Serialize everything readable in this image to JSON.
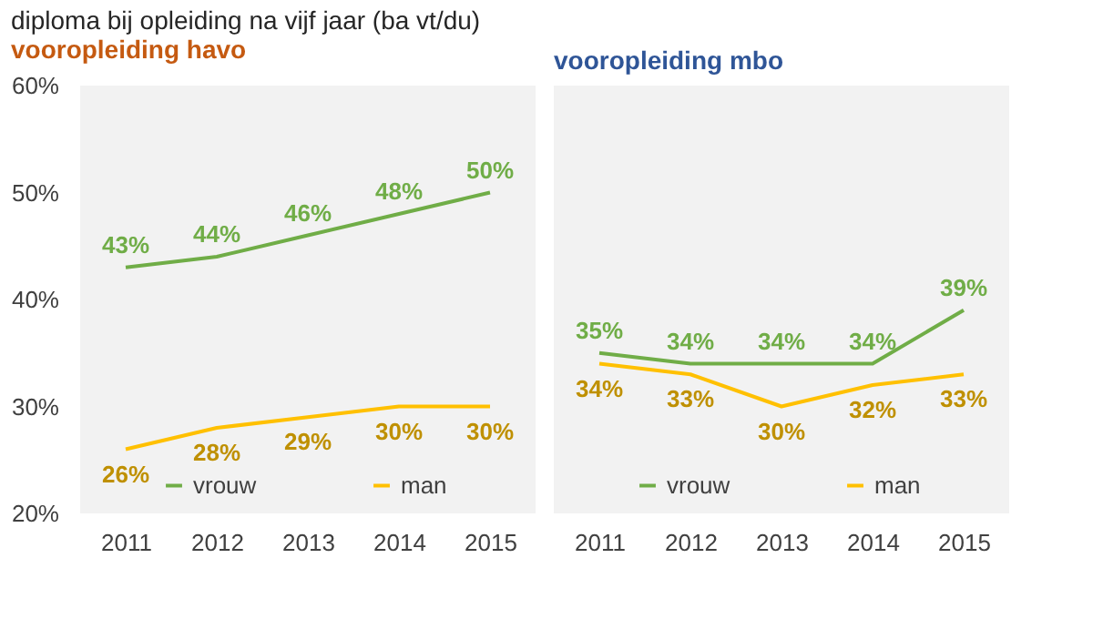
{
  "chart_data": [
    {
      "type": "line",
      "title": "vooropleiding havo",
      "annotations": [
        "diploma bij opleiding na vijf jaar (ba vt/du)"
      ],
      "categories": [
        "2011",
        "2012",
        "2013",
        "2014",
        "2015"
      ],
      "ylim": [
        20,
        60
      ],
      "yticks": [
        {
          "value": 20,
          "label": "20%"
        },
        {
          "value": 30,
          "label": "30%"
        },
        {
          "value": 40,
          "label": "40%"
        },
        {
          "value": 50,
          "label": "50%"
        },
        {
          "value": 60,
          "label": "60%"
        }
      ],
      "grid": false,
      "legend": "bottom",
      "marker": "none",
      "line_style": "solid",
      "series": [
        {
          "name": "vrouw",
          "color": "#70ad47",
          "values": [
            43,
            44,
            46,
            48,
            50
          ],
          "value_labels": [
            "43%",
            "44%",
            "46%",
            "48%",
            "50%"
          ]
        },
        {
          "name": "man",
          "color": "#ffc000",
          "values": [
            26,
            28,
            29,
            30,
            30
          ],
          "value_labels": [
            "26%",
            "28%",
            "29%",
            "30%",
            "30%"
          ]
        }
      ]
    },
    {
      "type": "line",
      "title": "vooropleiding mbo",
      "categories": [
        "2011",
        "2012",
        "2013",
        "2014",
        "2015"
      ],
      "ylim": [
        20,
        60
      ],
      "tick_labels": "x",
      "grid": false,
      "legend": "bottom",
      "marker": "none",
      "line_style": "solid",
      "series": [
        {
          "name": "vrouw",
          "color": "#70ad47",
          "values": [
            35,
            34,
            34,
            34,
            39
          ],
          "value_labels": [
            "35%",
            "34%",
            "34%",
            "34%",
            "39%"
          ]
        },
        {
          "name": "man",
          "color": "#ffc000",
          "values": [
            34,
            33,
            30,
            32,
            33
          ],
          "value_labels": [
            "34%",
            "33%",
            "30%",
            "32%",
            "33%"
          ]
        }
      ]
    }
  ]
}
